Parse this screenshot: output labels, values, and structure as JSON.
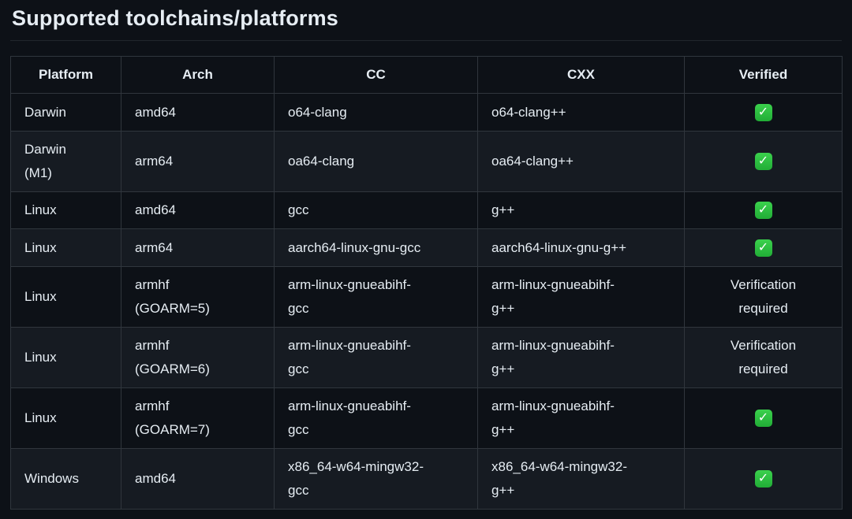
{
  "page": {
    "title": "Supported toolchains/platforms"
  },
  "icons": {
    "check_glyph": "✓"
  },
  "colors": {
    "page_bg": "#0d1117",
    "row_alt_bg": "#161b22",
    "border": "#30363d",
    "text": "#e6edf3",
    "check_green": "#2ebd3f"
  },
  "table": {
    "headers": [
      "Platform",
      "Arch",
      "CC",
      "CXX",
      "Verified"
    ],
    "rows": [
      {
        "platform": "Darwin",
        "arch": "amd64",
        "cc": "o64-clang",
        "cxx": "o64-clang++",
        "verified": {
          "type": "check"
        }
      },
      {
        "platform": "Darwin (M1)",
        "arch": "arm64",
        "cc": "oa64-clang",
        "cxx": "oa64-clang++",
        "verified": {
          "type": "check"
        }
      },
      {
        "platform": "Linux",
        "arch": "amd64",
        "cc": "gcc",
        "cxx": "g++",
        "verified": {
          "type": "check"
        }
      },
      {
        "platform": "Linux",
        "arch": "arm64",
        "cc": "aarch64-linux-gnu-gcc",
        "cxx": "aarch64-linux-gnu-g++",
        "verified": {
          "type": "check"
        }
      },
      {
        "platform": "Linux",
        "arch": "armhf (GOARM=5)",
        "cc": "arm-linux-gnueabihf-gcc",
        "cxx": "arm-linux-gnueabihf-g++",
        "verified": {
          "type": "text",
          "label": "Verification required"
        }
      },
      {
        "platform": "Linux",
        "arch": "armhf (GOARM=6)",
        "cc": "arm-linux-gnueabihf-gcc",
        "cxx": "arm-linux-gnueabihf-g++",
        "verified": {
          "type": "text",
          "label": "Verification required"
        }
      },
      {
        "platform": "Linux",
        "arch": "armhf (GOARM=7)",
        "cc": "arm-linux-gnueabihf-gcc",
        "cxx": "arm-linux-gnueabihf-g++",
        "verified": {
          "type": "check"
        }
      },
      {
        "platform": "Windows",
        "arch": "amd64",
        "cc": "x86_64-w64-mingw32-gcc",
        "cxx": "x86_64-w64-mingw32-g++",
        "verified": {
          "type": "check"
        }
      }
    ]
  }
}
